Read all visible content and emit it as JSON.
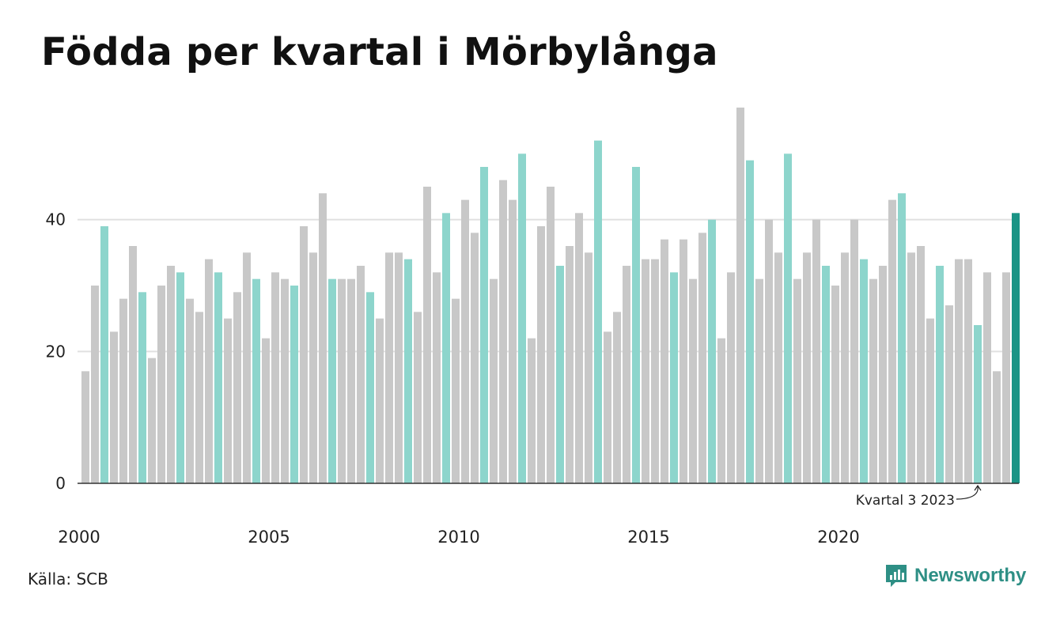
{
  "title": "Födda per kvartal i Mörbylånga",
  "source": "Källa: SCB",
  "brand": "Newsworthy",
  "colors": {
    "default_bar": "#c8c8c8",
    "q3_bar": "#8dd5cc",
    "highlight_bar": "#1a9485",
    "grid": "#e0e0e0",
    "axis": "#333333",
    "brand": "#2e8f85"
  },
  "chart_data": {
    "type": "bar",
    "title": "Födda per kvartal i Mörbylånga",
    "xlabel": "",
    "ylabel": "",
    "ylim": [
      0,
      57
    ],
    "yticks": [
      0,
      20,
      40
    ],
    "grid": true,
    "start_year": 2000,
    "xtick_labels": [
      "2000",
      "2005",
      "2010",
      "2015",
      "2020"
    ],
    "values": [
      17,
      30,
      39,
      23,
      28,
      36,
      29,
      19,
      30,
      33,
      32,
      28,
      26,
      34,
      32,
      25,
      29,
      35,
      31,
      22,
      32,
      31,
      30,
      39,
      35,
      44,
      31,
      31,
      31,
      33,
      29,
      25,
      35,
      35,
      34,
      26,
      45,
      32,
      41,
      28,
      43,
      38,
      48,
      31,
      46,
      43,
      50,
      22,
      39,
      45,
      33,
      36,
      41,
      35,
      52,
      23,
      26,
      33,
      48,
      34,
      34,
      37,
      32,
      37,
      31,
      38,
      40,
      22,
      32,
      57,
      49,
      31,
      40,
      35,
      50,
      31,
      35,
      40,
      33,
      30,
      35,
      40,
      34,
      31,
      33,
      43,
      44,
      35,
      36,
      25,
      33,
      27,
      34,
      34,
      24,
      32,
      17,
      32,
      41
    ],
    "highlighted_quarter": "Q3",
    "annotation": "Kvartal 3 2023"
  }
}
